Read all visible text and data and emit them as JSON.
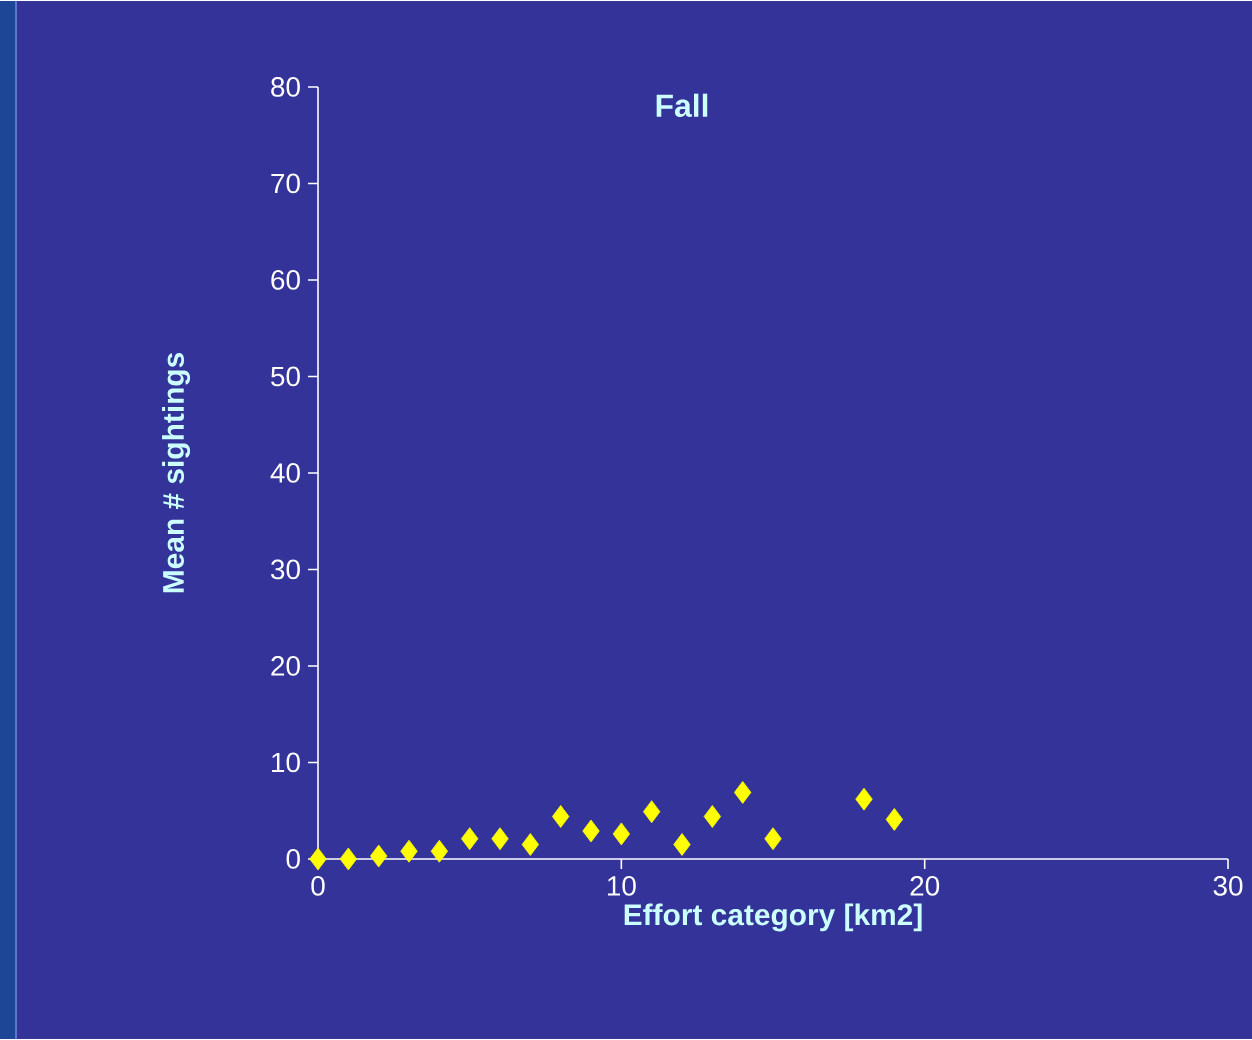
{
  "chart_data": {
    "type": "scatter",
    "title": "Fall",
    "xlabel": "Effort category [km2]",
    "ylabel": "Mean # sightings",
    "x": [
      0,
      1,
      2,
      3,
      4,
      5,
      6,
      7,
      8,
      9,
      10,
      11,
      12,
      13,
      14,
      15,
      18,
      19
    ],
    "values": [
      0,
      0,
      0.3,
      0.8,
      0.8,
      2.1,
      2.1,
      1.5,
      4.4,
      2.9,
      2.6,
      4.9,
      1.5,
      4.4,
      6.9,
      2.1,
      6.2,
      4.1
    ],
    "color": "#ffff00",
    "marker": "diamond",
    "xlim": [
      0,
      30
    ],
    "xticks": [
      0,
      10,
      20,
      30
    ],
    "ylim": [
      0,
      80
    ],
    "yticks": [
      0,
      10,
      20,
      30,
      40,
      50,
      60,
      70,
      80
    ],
    "grid": false
  }
}
